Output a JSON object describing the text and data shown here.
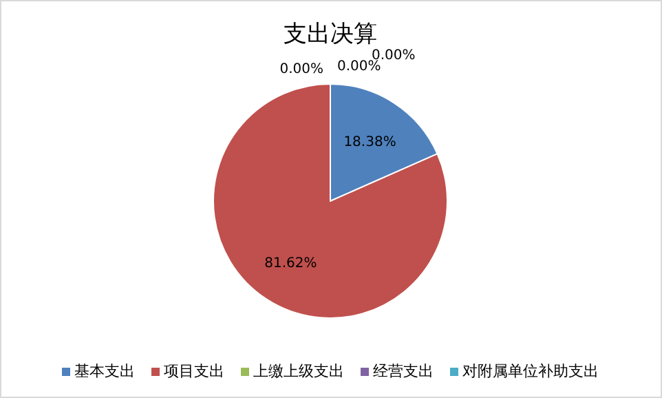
{
  "chart_data": {
    "type": "pie",
    "title": "支出决算",
    "categories": [
      "基本支出",
      "项目支出",
      "上缴上级支出",
      "经营支出",
      "对附属单位补助支出"
    ],
    "values": [
      18.38,
      81.62,
      0,
      0,
      0
    ],
    "colors": [
      "#4f81bd",
      "#c0504d",
      "#9bbb59",
      "#8064a2",
      "#4bacc6"
    ],
    "value_labels": [
      "18.38%",
      "81.62%",
      "0.00%",
      "0.00%",
      "0.00%"
    ],
    "legend": "bottom"
  }
}
